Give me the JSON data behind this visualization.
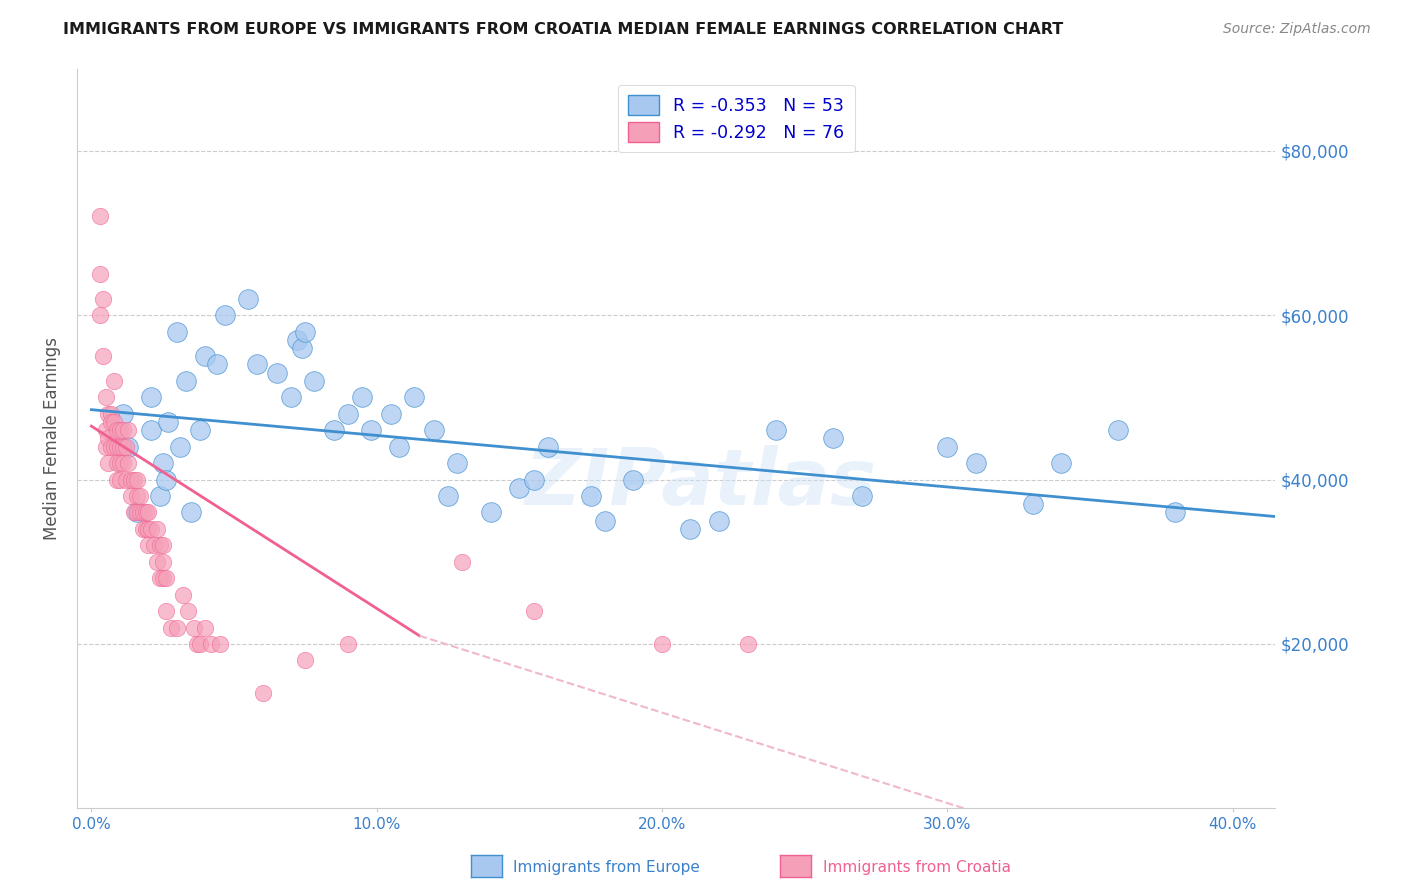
{
  "title": "IMMIGRANTS FROM EUROPE VS IMMIGRANTS FROM CROATIA MEDIAN FEMALE EARNINGS CORRELATION CHART",
  "source": "Source: ZipAtlas.com",
  "ylabel": "Median Female Earnings",
  "x_tick_labels": [
    "0.0%",
    "10.0%",
    "20.0%",
    "30.0%",
    "40.0%"
  ],
  "x_tick_positions": [
    0.0,
    0.1,
    0.2,
    0.3,
    0.4
  ],
  "y_tick_labels": [
    "$20,000",
    "$40,000",
    "$60,000",
    "$80,000"
  ],
  "y_tick_positions": [
    20000,
    40000,
    60000,
    80000
  ],
  "xlim": [
    -0.005,
    0.415
  ],
  "ylim": [
    0,
    90000
  ],
  "legend_europe_r": "R = ",
  "legend_europe_r_val": "-0.353",
  "legend_europe_n": "   N = ",
  "legend_europe_n_val": "53",
  "legend_croatia_r": "R = ",
  "legend_croatia_r_val": "-0.292",
  "legend_croatia_n": "   N = ",
  "legend_croatia_n_val": "76",
  "color_europe": "#a8c8f0",
  "color_croatia": "#f5a0b8",
  "trendline_europe_color": "#4090d0",
  "trendline_croatia_color": "#f06090",
  "trendline_croatia_dashed_color": "#f0b8cc",
  "watermark": "ZIPatlas",
  "europe_x": [
    0.011,
    0.013,
    0.016,
    0.021,
    0.021,
    0.024,
    0.025,
    0.026,
    0.027,
    0.03,
    0.031,
    0.033,
    0.035,
    0.038,
    0.04,
    0.044,
    0.047,
    0.055,
    0.058,
    0.065,
    0.07,
    0.072,
    0.074,
    0.075,
    0.078,
    0.085,
    0.09,
    0.095,
    0.098,
    0.105,
    0.108,
    0.113,
    0.12,
    0.125,
    0.128,
    0.14,
    0.15,
    0.155,
    0.16,
    0.175,
    0.18,
    0.19,
    0.21,
    0.22,
    0.24,
    0.26,
    0.27,
    0.3,
    0.31,
    0.33,
    0.34,
    0.36,
    0.38
  ],
  "europe_y": [
    48000,
    44000,
    36000,
    50000,
    46000,
    38000,
    42000,
    40000,
    47000,
    58000,
    44000,
    52000,
    36000,
    46000,
    55000,
    54000,
    60000,
    62000,
    54000,
    53000,
    50000,
    57000,
    56000,
    58000,
    52000,
    46000,
    48000,
    50000,
    46000,
    48000,
    44000,
    50000,
    46000,
    38000,
    42000,
    36000,
    39000,
    40000,
    44000,
    38000,
    35000,
    40000,
    34000,
    35000,
    46000,
    45000,
    38000,
    44000,
    42000,
    37000,
    42000,
    46000,
    36000
  ],
  "croatia_x": [
    0.003,
    0.003,
    0.003,
    0.004,
    0.004,
    0.005,
    0.005,
    0.005,
    0.006,
    0.006,
    0.006,
    0.007,
    0.007,
    0.007,
    0.008,
    0.008,
    0.008,
    0.009,
    0.009,
    0.009,
    0.009,
    0.01,
    0.01,
    0.01,
    0.01,
    0.011,
    0.011,
    0.011,
    0.012,
    0.012,
    0.013,
    0.013,
    0.014,
    0.014,
    0.015,
    0.015,
    0.016,
    0.016,
    0.016,
    0.017,
    0.017,
    0.018,
    0.018,
    0.019,
    0.019,
    0.02,
    0.02,
    0.02,
    0.021,
    0.022,
    0.023,
    0.023,
    0.024,
    0.024,
    0.025,
    0.025,
    0.025,
    0.026,
    0.026,
    0.028,
    0.03,
    0.032,
    0.034,
    0.036,
    0.037,
    0.038,
    0.04,
    0.042,
    0.045,
    0.06,
    0.075,
    0.09,
    0.13,
    0.155,
    0.2,
    0.23
  ],
  "croatia_y": [
    72000,
    65000,
    60000,
    55000,
    62000,
    46000,
    50000,
    44000,
    48000,
    45000,
    42000,
    48000,
    47000,
    44000,
    52000,
    47000,
    44000,
    46000,
    44000,
    42000,
    40000,
    46000,
    44000,
    42000,
    40000,
    44000,
    46000,
    42000,
    44000,
    40000,
    46000,
    42000,
    40000,
    38000,
    36000,
    40000,
    38000,
    36000,
    40000,
    38000,
    36000,
    36000,
    34000,
    34000,
    36000,
    34000,
    32000,
    36000,
    34000,
    32000,
    30000,
    34000,
    32000,
    28000,
    30000,
    28000,
    32000,
    28000,
    24000,
    22000,
    22000,
    26000,
    24000,
    22000,
    20000,
    20000,
    22000,
    20000,
    20000,
    14000,
    18000,
    20000,
    30000,
    24000,
    20000,
    20000
  ],
  "europe_trendline": [
    0.0,
    48500,
    0.415,
    35500
  ],
  "croatia_trendline_solid": [
    0.0,
    46500,
    0.115,
    21000
  ],
  "croatia_trendline_dashed": [
    0.115,
    21000,
    0.415,
    -12000
  ],
  "background_color": "#ffffff",
  "grid_color": "#cccccc",
  "title_color": "#1a1a1a",
  "axis_label_color": "#555555",
  "tick_label_color": "#3a80cc",
  "r_val_color": "#0000cc",
  "n_val_color": "#0000cc",
  "source_color": "#888888",
  "legend_text_color": "#333333"
}
